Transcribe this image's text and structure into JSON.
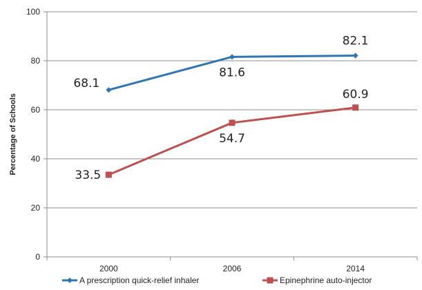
{
  "chart_data": {
    "type": "line",
    "title": "",
    "xlabel": "",
    "ylabel": "Percentage of Schools",
    "categories": [
      "2000",
      "2006",
      "2014"
    ],
    "ylim": [
      0,
      100
    ],
    "yticks": [
      0,
      20,
      40,
      60,
      80,
      100
    ],
    "grid": true,
    "legend_position": "bottom",
    "series": [
      {
        "name": "A prescription quick-relief inhaler",
        "values": [
          68.1,
          81.6,
          82.1
        ],
        "labels": [
          "68.1",
          "81.6",
          "82.1"
        ],
        "color": "#2e75b6",
        "marker": "diamond"
      },
      {
        "name": "Epinephrine auto-injector",
        "values": [
          33.5,
          54.7,
          60.9
        ],
        "labels": [
          "33.5",
          "54.7",
          "60.9"
        ],
        "color": "#c0504d",
        "marker": "square"
      }
    ]
  }
}
